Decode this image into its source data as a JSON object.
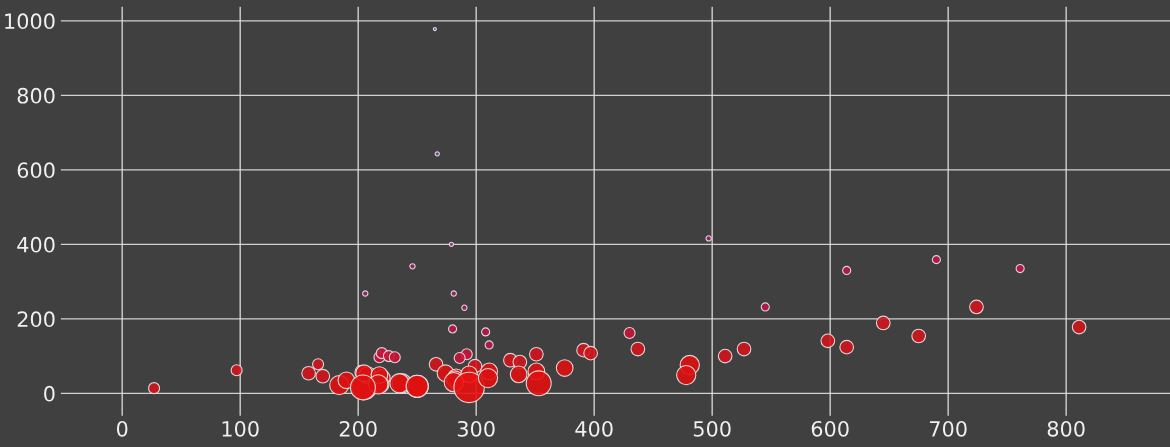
{
  "chart_data": {
    "type": "bubble",
    "x": [
      27,
      97,
      158,
      166,
      170,
      184,
      190,
      203,
      205,
      208,
      220,
      219,
      218,
      220,
      226,
      231,
      237,
      250,
      206,
      246,
      279,
      281,
      290,
      280,
      308,
      311,
      292,
      286,
      266,
      299,
      329,
      337,
      351,
      391,
      397,
      375,
      274,
      205,
      218,
      217,
      204,
      235,
      250,
      283,
      282,
      281,
      294,
      294,
      311,
      310,
      336,
      351,
      353,
      497,
      614,
      545,
      430,
      437,
      511,
      527,
      598,
      614,
      481,
      478,
      645,
      690,
      675,
      724,
      761,
      811,
      265,
      267
    ],
    "values": [
      14,
      62,
      54,
      78,
      46,
      22,
      35,
      57,
      16,
      49,
      41,
      24,
      97,
      108,
      100,
      97,
      27,
      19,
      268,
      341,
      400,
      268,
      230,
      173,
      165,
      130,
      105,
      95,
      78,
      73,
      89,
      84,
      105,
      116,
      108,
      68,
      54,
      54,
      49,
      24,
      16,
      27,
      19,
      43,
      38,
      30,
      51,
      16,
      59,
      41,
      51,
      59,
      27,
      416,
      330,
      232,
      162,
      119,
      100,
      119,
      141,
      124,
      76,
      49,
      189,
      359,
      154,
      232,
      335,
      178,
      978,
      643
    ],
    "sizes": [
      0.13,
      0.13,
      0.2,
      0.13,
      0.2,
      0.4,
      0.3,
      0.2,
      0.67,
      0.3,
      0.3,
      0.3,
      0.13,
      0.13,
      0.13,
      0.13,
      0.4,
      0.53,
      0.03,
      0.03,
      0.02,
      0.03,
      0.03,
      0.07,
      0.07,
      0.07,
      0.13,
      0.13,
      0.2,
      0.2,
      0.2,
      0.2,
      0.2,
      0.2,
      0.2,
      0.3,
      0.3,
      0.3,
      0.3,
      0.4,
      0.67,
      0.4,
      0.53,
      0.3,
      0.3,
      0.4,
      0.3,
      1,
      0.3,
      0.4,
      0.3,
      0.3,
      0.67,
      0.03,
      0.07,
      0.07,
      0.13,
      0.2,
      0.2,
      0.2,
      0.2,
      0.2,
      0.4,
      0.4,
      0.2,
      0.07,
      0.2,
      0.2,
      0.07,
      0.2,
      0.01,
      0.02
    ],
    "colors": [
      "#d0141c",
      "#d0141c",
      "#d0141c",
      "#d0141c",
      "#d0141c",
      "#dd1111",
      "#dd1111",
      "#d0141c",
      "#e01010",
      "#dd1111",
      "#dd1111",
      "#dd1111",
      "#c8143a",
      "#c8143a",
      "#c8143a",
      "#c8143a",
      "#dd1111",
      "#e01010",
      "#a01c6a",
      "#a01c6a",
      "#9a2a8a",
      "#a01c6a",
      "#a01c6a",
      "#b8164a",
      "#b8164a",
      "#b8164a",
      "#c8143a",
      "#c8143a",
      "#d0141c",
      "#d0141c",
      "#d0141c",
      "#d0141c",
      "#d0141c",
      "#d0141c",
      "#d0141c",
      "#dd1111",
      "#dd1111",
      "#dd1111",
      "#dd1111",
      "#dd1111",
      "#e01010",
      "#dd1111",
      "#e01010",
      "#dd1111",
      "#dd1111",
      "#dd1111",
      "#dd1111",
      "#e81010",
      "#dd1111",
      "#dd1111",
      "#dd1111",
      "#dd1111",
      "#e01010",
      "#a01c6a",
      "#b8164a",
      "#b8164a",
      "#c8143a",
      "#d0141c",
      "#d0141c",
      "#d0141c",
      "#d0141c",
      "#d0141c",
      "#dd1111",
      "#dd1111",
      "#d0141c",
      "#b8164a",
      "#d0141c",
      "#d0141c",
      "#b8164a",
      "#d0141c",
      "#6a5ad0",
      "#8a3aa0"
    ],
    "xlim": [
      -52,
      888
    ],
    "ylim": [
      -60,
      1038
    ],
    "xticks": [
      0,
      100,
      200,
      300,
      400,
      500,
      600,
      700,
      800
    ],
    "yticks": [
      0,
      200,
      400,
      600,
      800,
      1000
    ],
    "grid": true
  }
}
